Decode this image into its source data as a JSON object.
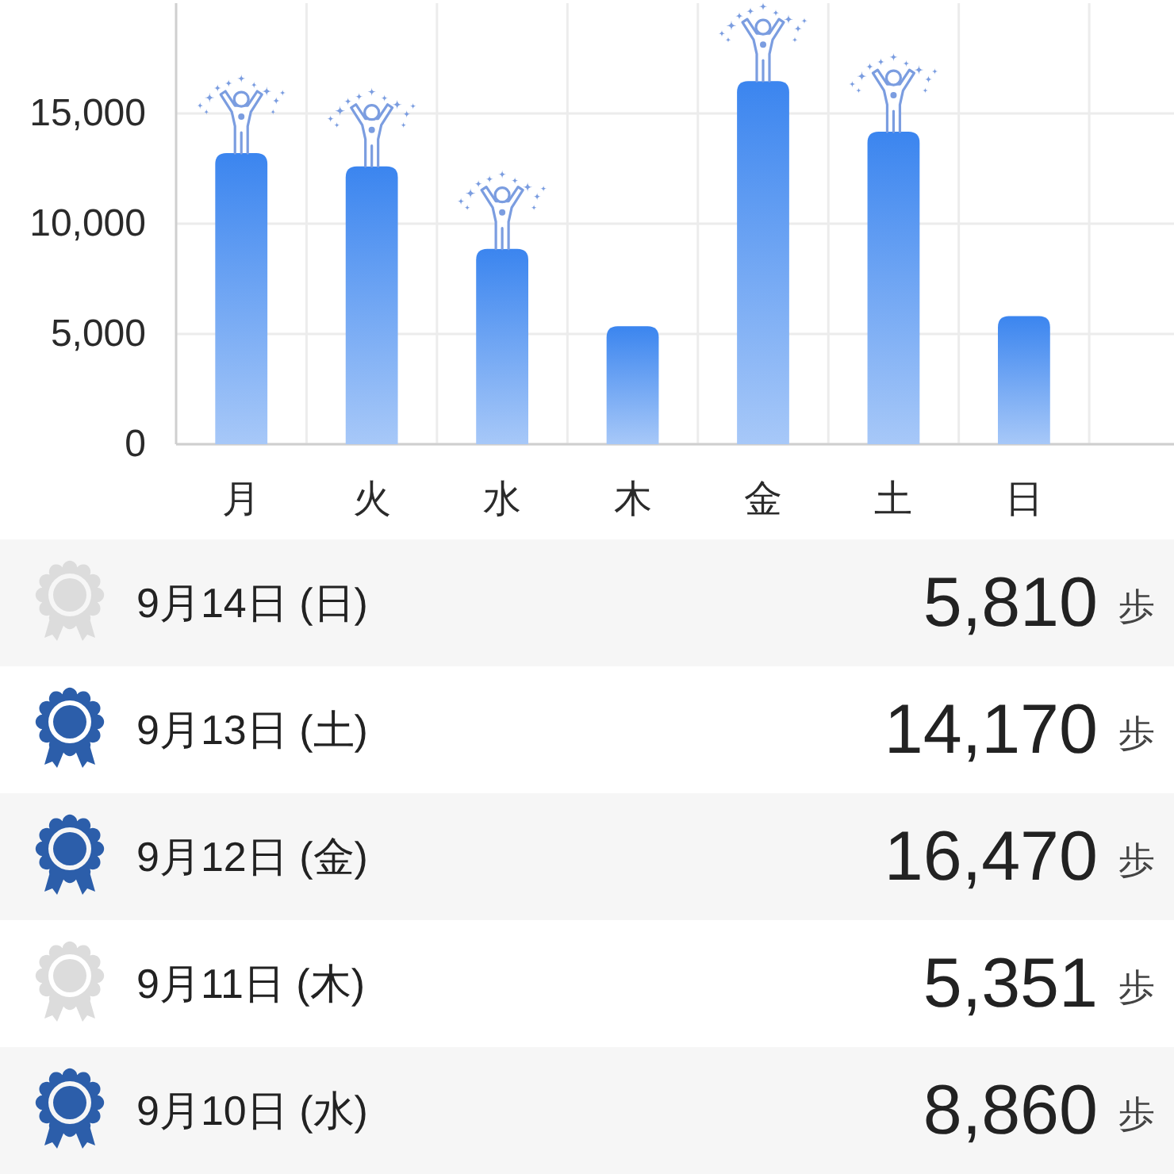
{
  "chart_data": [
    {
      "type": "bar",
      "categories": [
        "月",
        "火",
        "水",
        "木",
        "金",
        "土",
        "日"
      ],
      "stacked": true,
      "series": [
        {
          "color": "#3b85ef",
          "marker": "star",
          "values": [
            13200,
            12600,
            8860,
            null,
            16470,
            14170,
            null
          ]
        },
        {
          "color": "#3b85ef",
          "values": [
            null,
            null,
            null,
            5351,
            null,
            null,
            5810
          ]
        }
      ],
      "ylim": [
        0,
        20000
      ],
      "yticks": [
        0,
        {
          "value": 5000,
          "label": "5,000"
        },
        {
          "value": 10000,
          "label": "10,000"
        },
        {
          "value": 15000,
          "label": "15,000"
        }
      ],
      "grid": true
    },
    {
      "type": "other",
      "categories": [
        "9月14日 (日)",
        "9月13日 (土)",
        "9月12日 (金)",
        "9月11日 (木)",
        "9月10日 (水)"
      ],
      "value_labels": [
        "5,810",
        "14,170",
        "16,470",
        "5,351",
        "8,860"
      ],
      "colors": [
        "#dcdcdc",
        "#2c5eaa",
        "#2c5eaa",
        "#dcdcdc",
        "#2c5eaa"
      ],
      "annotations": [
        "歩",
        "歩",
        "歩",
        "歩",
        "歩"
      ]
    }
  ]
}
